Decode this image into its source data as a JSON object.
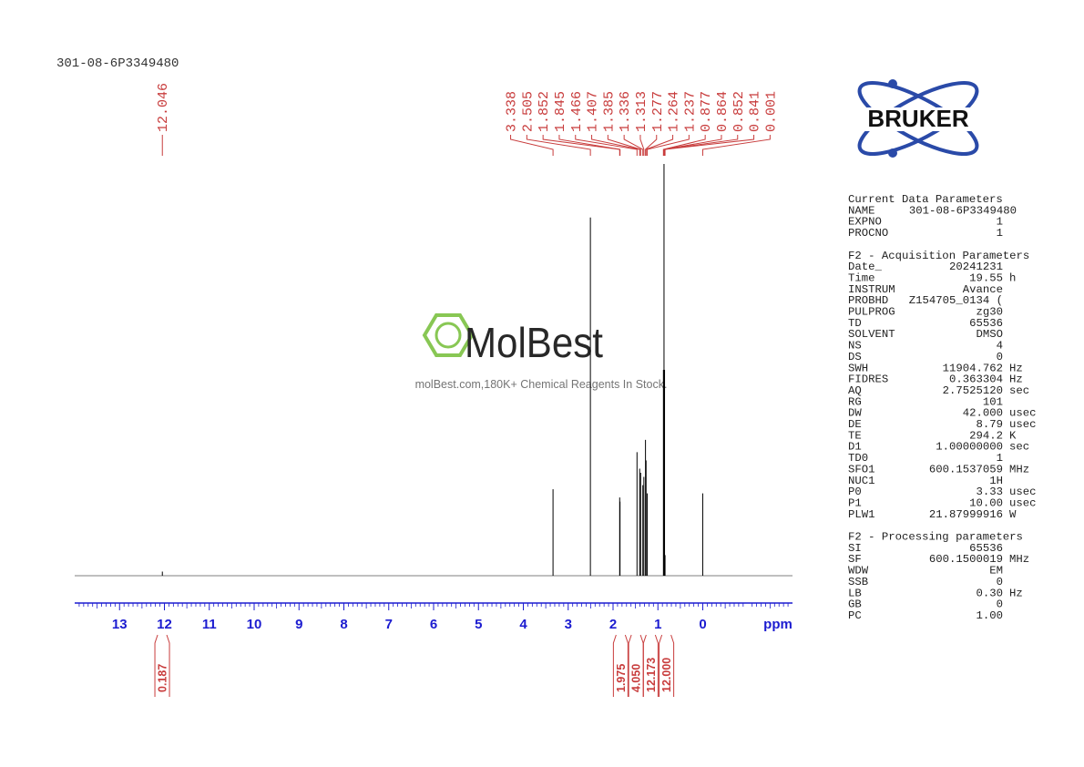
{
  "header": {
    "title": "301-08-6P3349480"
  },
  "logo": {
    "text": "BRUKER"
  },
  "watermark": {
    "brand": "MolBest",
    "tagline": "molBest.com,180K+ Chemical Reagents In Stock."
  },
  "chart_data": {
    "type": "nmr",
    "x_label": "ppm",
    "xlim": [
      14,
      -2
    ],
    "xticks": [
      13,
      12,
      11,
      10,
      9,
      8,
      7,
      6,
      5,
      4,
      3,
      2,
      1,
      0
    ],
    "color": "#000000",
    "axis_color": "#1c1cd0",
    "label_color": "#c83c3c",
    "peaks": [
      12.046,
      3.338,
      2.505,
      1.852,
      1.845,
      1.466,
      1.407,
      1.385,
      1.336,
      1.313,
      1.277,
      1.264,
      1.237,
      0.877,
      0.864,
      0.852,
      0.841,
      0.001
    ],
    "intensities": [
      1,
      21,
      87,
      19,
      18,
      30,
      26,
      25,
      22,
      24,
      33,
      28,
      20,
      50,
      100,
      50,
      5,
      20
    ],
    "integrals": {
      "x": [
        12.05,
        1.83,
        1.49,
        1.16,
        0.81
      ],
      "values": [
        0.187,
        1.975,
        4.05,
        12.173,
        12
      ],
      "value_labels": [
        "0.187",
        "1.975",
        "4.050",
        "12.173",
        "12.000"
      ]
    }
  },
  "parameters": {
    "sections": [
      {
        "heading": "Current Data Parameters",
        "rows": [
          [
            "NAME",
            "301-08-6P3349480"
          ],
          [
            "EXPNO",
            "1"
          ],
          [
            "PROCNO",
            "1"
          ]
        ]
      },
      {
        "heading": "F2 - Acquisition Parameters",
        "rows": [
          [
            "Date_",
            "20241231"
          ],
          [
            "Time",
            "19.55",
            "h"
          ],
          [
            "INSTRUM",
            "Avance"
          ],
          [
            "PROBHD",
            "Z154705_0134 ("
          ],
          [
            "PULPROG",
            "zg30"
          ],
          [
            "TD",
            "65536"
          ],
          [
            "SOLVENT",
            "DMSO"
          ],
          [
            "NS",
            "4"
          ],
          [
            "DS",
            "0"
          ],
          [
            "SWH",
            "11904.762",
            "Hz"
          ],
          [
            "FIDRES",
            "0.363304",
            "Hz"
          ],
          [
            "AQ",
            "2.7525120",
            "sec"
          ],
          [
            "RG",
            "101"
          ],
          [
            "DW",
            "42.000",
            "usec"
          ],
          [
            "DE",
            "8.79",
            "usec"
          ],
          [
            "TE",
            "294.2",
            "K"
          ],
          [
            "D1",
            "1.00000000",
            "sec"
          ],
          [
            "TD0",
            "1"
          ],
          [
            "SFO1",
            "600.1537059",
            "MHz"
          ],
          [
            "NUC1",
            "1H"
          ],
          [
            "P0",
            "3.33",
            "usec"
          ],
          [
            "P1",
            "10.00",
            "usec"
          ],
          [
            "PLW1",
            "21.87999916",
            "W"
          ]
        ]
      },
      {
        "heading": "F2 - Processing parameters",
        "rows": [
          [
            "SI",
            "65536"
          ],
          [
            "SF",
            "600.1500019",
            "MHz"
          ],
          [
            "WDW",
            "EM"
          ],
          [
            "SSB",
            "0"
          ],
          [
            "LB",
            "0.30",
            "Hz"
          ],
          [
            "GB",
            "0"
          ],
          [
            "PC",
            "1.00"
          ]
        ]
      }
    ]
  }
}
